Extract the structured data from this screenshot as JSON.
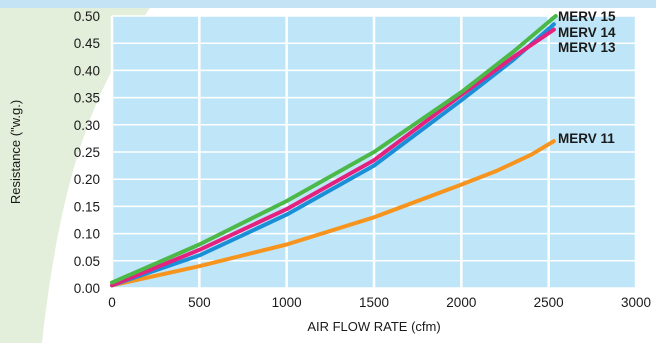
{
  "chart_data": {
    "type": "line",
    "xlabel": "AIR FLOW RATE (cfm)",
    "ylabel": "Resistance (\"w.g.)",
    "xlim": [
      0,
      3000
    ],
    "ylim": [
      0,
      0.5
    ],
    "x_ticks": [
      "0",
      "500",
      "1000",
      "1500",
      "2000",
      "2500",
      "3000"
    ],
    "y_ticks": [
      "0.00",
      "0.05",
      "0.10",
      "0.15",
      "0.20",
      "0.25",
      "0.30",
      "0.35",
      "0.40",
      "0.45",
      "0.50"
    ],
    "grid": true,
    "colors": {
      "plot_background": "#bfe6f8",
      "grid": "#ffffff",
      "side_panel": "#e3eedb",
      "top_band": "#c4e3f4"
    },
    "series": [
      {
        "name": "MERV 11",
        "color": "#f7941d",
        "x": [
          0,
          500,
          1000,
          1500,
          2000,
          2200,
          2400,
          2530
        ],
        "y": [
          0.005,
          0.04,
          0.08,
          0.13,
          0.19,
          0.215,
          0.245,
          0.27
        ]
      },
      {
        "name": "MERV 13",
        "color": "#1a8fd8",
        "x": [
          0,
          500,
          1000,
          1500,
          2000,
          2300,
          2530
        ],
        "y": [
          0.005,
          0.06,
          0.135,
          0.225,
          0.345,
          0.42,
          0.485
        ]
      },
      {
        "name": "MERV 14",
        "color": "#e5217f",
        "x": [
          0,
          500,
          1000,
          1500,
          2000,
          2300,
          2530
        ],
        "y": [
          0.005,
          0.07,
          0.145,
          0.235,
          0.355,
          0.425,
          0.475
        ]
      },
      {
        "name": "MERV 15",
        "color": "#4cb848",
        "x": [
          0,
          500,
          1000,
          1500,
          2000,
          2300,
          2540
        ],
        "y": [
          0.01,
          0.08,
          0.16,
          0.25,
          0.36,
          0.435,
          0.5
        ]
      }
    ],
    "series_labels": [
      "MERV 15",
      "MERV 14",
      "MERV 13",
      "MERV 11"
    ]
  }
}
